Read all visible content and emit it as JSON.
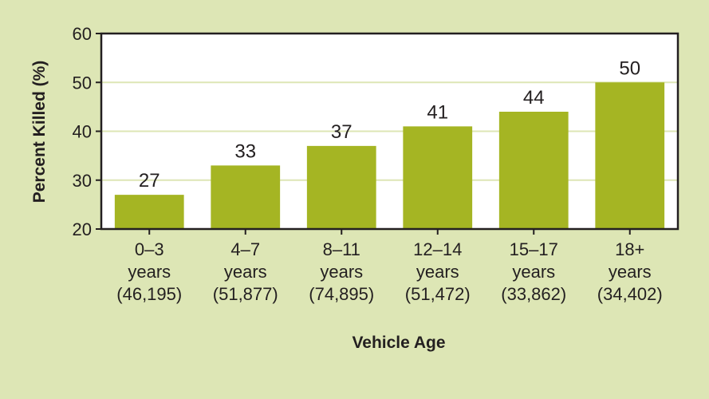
{
  "chart_data": {
    "type": "bar",
    "xlabel": "Vehicle Age",
    "ylabel": "Percent Killed (%)",
    "ylim": [
      20,
      60
    ],
    "yticks": [
      20,
      30,
      40,
      50,
      60
    ],
    "grid": true,
    "categories": [
      [
        "0–3",
        "years",
        "(46,195)"
      ],
      [
        "4–7",
        "years",
        "(51,877)"
      ],
      [
        "8–11",
        "years",
        "(74,895)"
      ],
      [
        "12–14",
        "years",
        "(51,472)"
      ],
      [
        "15–17",
        "years",
        "(33,862)"
      ],
      [
        "18+",
        "years",
        "(34,402)"
      ]
    ],
    "values": [
      27,
      33,
      37,
      41,
      44,
      50
    ],
    "colors": {
      "background": "#dde6b5",
      "plot_background": "#ffffff",
      "bar": "#a5b523",
      "grid": "#dde6b5",
      "axis": "#231f20"
    }
  }
}
